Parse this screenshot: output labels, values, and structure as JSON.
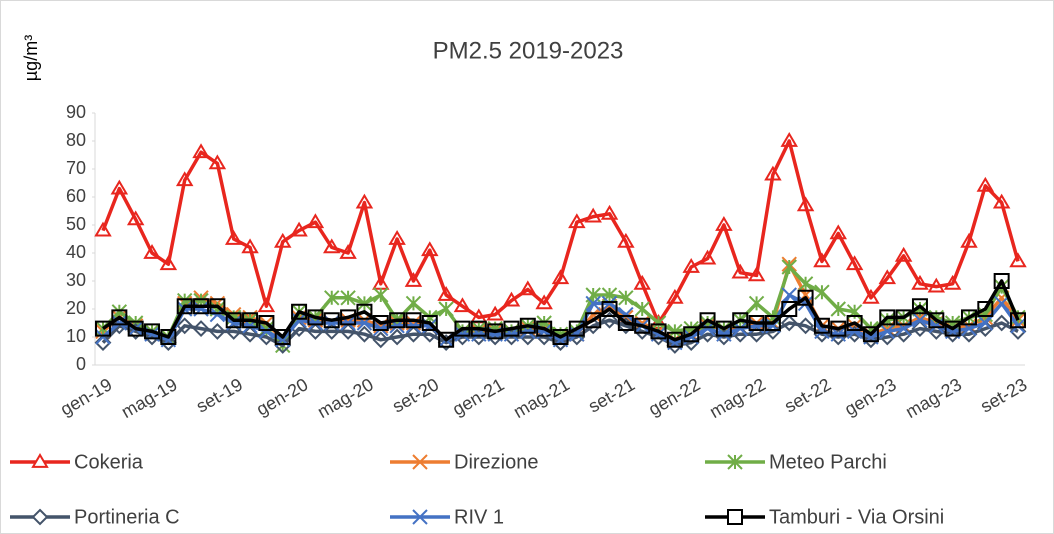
{
  "chart_data": {
    "type": "line",
    "title": "PM2.5 2019-2023",
    "ylabel": "µg/m³",
    "categories": [
      "gen-19",
      null,
      null,
      null,
      "mag-19",
      null,
      null,
      null,
      "set-19",
      null,
      null,
      null,
      "gen-20",
      null,
      null,
      null,
      "mag-20",
      null,
      null,
      null,
      "set-20",
      null,
      null,
      null,
      "gen-21",
      null,
      null,
      null,
      "mag-21",
      null,
      null,
      null,
      "set-21",
      null,
      null,
      null,
      "gen-22",
      null,
      null,
      null,
      "mag-22",
      null,
      null,
      null,
      "set-22",
      null,
      null,
      null,
      "gen-23",
      null,
      null,
      null,
      "mag-23",
      null,
      null,
      null,
      "set-23"
    ],
    "ylim": [
      0,
      90
    ],
    "yticks": [
      0,
      10,
      20,
      30,
      40,
      50,
      60,
      70,
      80,
      90
    ],
    "grid": false,
    "series": [
      {
        "name": "Cokeria",
        "color": "#e8261e",
        "marker": "triangle",
        "values": [
          48,
          63,
          52,
          40,
          36,
          66,
          76,
          72,
          45,
          42,
          21,
          44,
          48,
          51,
          42,
          40,
          58,
          29,
          45,
          30,
          41,
          25,
          21,
          17,
          18,
          23,
          27,
          22,
          31,
          51,
          53,
          54,
          44,
          29,
          15,
          24,
          35,
          38,
          50,
          33,
          32,
          68,
          80,
          57,
          37,
          47,
          36,
          24,
          31,
          39,
          29,
          28,
          29,
          44,
          64,
          58,
          37
        ]
      },
      {
        "name": "Direzione",
        "color": "#ed7d31",
        "marker": "x",
        "values": [
          12,
          17,
          14,
          12,
          10,
          22,
          24,
          22,
          18,
          17,
          15,
          9,
          17,
          16,
          15,
          16,
          16,
          14,
          15,
          15,
          14,
          9,
          12,
          12,
          12,
          12,
          13,
          13,
          10,
          11,
          18,
          21,
          17,
          15,
          12,
          9,
          11,
          14,
          13,
          13,
          15,
          15,
          36,
          25,
          14,
          13,
          14,
          11,
          13,
          14,
          17,
          15,
          13,
          14,
          17,
          24,
          16
        ]
      },
      {
        "name": "Meteo Parchi",
        "color": "#70ad47",
        "marker": "star",
        "values": [
          13,
          19,
          15,
          12,
          10,
          23,
          23,
          20,
          17,
          16,
          13,
          7,
          19,
          17,
          24,
          24,
          22,
          25,
          16,
          22,
          17,
          20,
          12,
          13,
          13,
          12,
          14,
          15,
          11,
          12,
          25,
          25,
          24,
          20,
          15,
          12,
          13,
          15,
          13,
          16,
          22,
          17,
          35,
          29,
          26,
          20,
          19,
          13,
          16,
          17,
          20,
          17,
          15,
          17,
          18,
          28,
          17
        ]
      },
      {
        "name": "Portineria C",
        "color": "#44546a",
        "marker": "diamond",
        "values": [
          8,
          14,
          12,
          10,
          8,
          14,
          13,
          12,
          12,
          11,
          10,
          7,
          13,
          12,
          12,
          12,
          11,
          9,
          10,
          11,
          11,
          8,
          10,
          10,
          10,
          10,
          10,
          10,
          8,
          10,
          14,
          16,
          14,
          12,
          10,
          7,
          8,
          11,
          10,
          11,
          11,
          12,
          15,
          14,
          11,
          10,
          11,
          9,
          10,
          11,
          13,
          12,
          11,
          11,
          13,
          15,
          12
        ]
      },
      {
        "name": "RIV 1",
        "color": "#4472c4",
        "marker": "x",
        "values": [
          10,
          15,
          13,
          11,
          9,
          20,
          20,
          18,
          15,
          14,
          12,
          9,
          16,
          15,
          15,
          15,
          15,
          13,
          14,
          14,
          14,
          9,
          11,
          11,
          11,
          11,
          12,
          12,
          9,
          11,
          22,
          22,
          18,
          14,
          11,
          8,
          10,
          13,
          11,
          13,
          14,
          14,
          25,
          22,
          12,
          11,
          12,
          10,
          12,
          13,
          16,
          14,
          12,
          13,
          15,
          22,
          14
        ]
      },
      {
        "name": "Tamburi - Via Orsini",
        "color": "#000000",
        "marker": "square",
        "values": [
          13,
          17,
          13,
          12,
          10,
          21,
          21,
          21,
          16,
          16,
          15,
          10,
          19,
          17,
          16,
          17,
          19,
          15,
          16,
          16,
          15,
          9,
          13,
          13,
          12,
          13,
          14,
          13,
          10,
          13,
          16,
          20,
          15,
          14,
          12,
          9,
          11,
          16,
          13,
          16,
          15,
          15,
          20,
          24,
          14,
          13,
          15,
          11,
          17,
          17,
          21,
          16,
          13,
          17,
          20,
          30,
          16
        ]
      }
    ]
  }
}
